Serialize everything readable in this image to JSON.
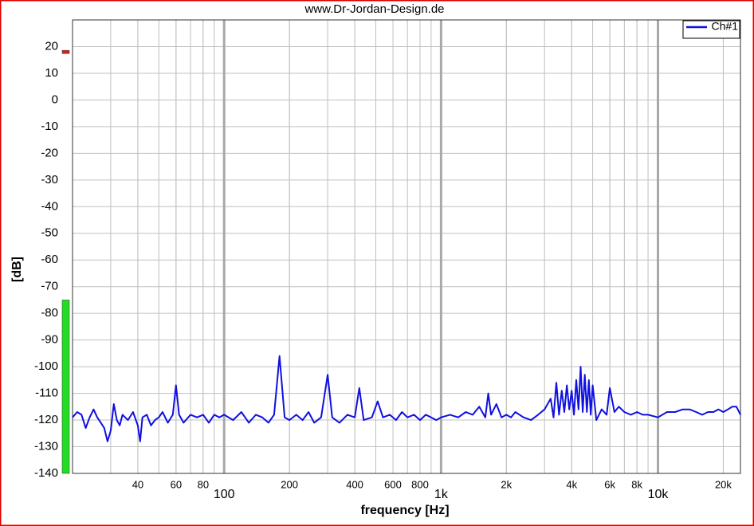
{
  "chart_data": {
    "type": "line",
    "title": "www.Dr-Jordan-Design.de",
    "x_label": "frequency [Hz]",
    "y_label": "[dB]",
    "xscale": "log",
    "xlim": [
      20,
      24000
    ],
    "ylim": [
      -140,
      30
    ],
    "grid": true,
    "minor_grid": true,
    "xticks": [
      {
        "value": 40,
        "label": "40"
      },
      {
        "value": 60,
        "label": "60"
      },
      {
        "value": 80,
        "label": "80"
      },
      {
        "value": 100,
        "label": "100"
      },
      {
        "value": 200,
        "label": "200"
      },
      {
        "value": 400,
        "label": "400"
      },
      {
        "value": 600,
        "label": "600"
      },
      {
        "value": 800,
        "label": "800"
      },
      {
        "value": 1000,
        "label": "1k"
      },
      {
        "value": 2000,
        "label": "2k"
      },
      {
        "value": 4000,
        "label": "4k"
      },
      {
        "value": 6000,
        "label": "6k"
      },
      {
        "value": 8000,
        "label": "8k"
      },
      {
        "value": 10000,
        "label": "10k"
      },
      {
        "value": 20000,
        "label": "20k"
      }
    ],
    "yticks": [
      -140,
      -130,
      -120,
      -110,
      -100,
      -90,
      -80,
      -70,
      -60,
      -50,
      -40,
      -30,
      -20,
      -10,
      0,
      10,
      20
    ],
    "legend": "top-right",
    "level_meter": {
      "level": -75,
      "level_color": "#22dd22",
      "peak": 18,
      "peak_color": "#cc2222"
    },
    "x": [
      20,
      21,
      22,
      23,
      24,
      25,
      26,
      27,
      28,
      29,
      30,
      31,
      32,
      33,
      34,
      36,
      38,
      40,
      41,
      42,
      44,
      46,
      48,
      50,
      52,
      55,
      58,
      60,
      62,
      65,
      70,
      75,
      80,
      85,
      90,
      95,
      100,
      110,
      120,
      130,
      140,
      150,
      160,
      170,
      180,
      190,
      200,
      215,
      230,
      245,
      260,
      280,
      300,
      315,
      340,
      370,
      400,
      420,
      440,
      480,
      510,
      540,
      580,
      620,
      660,
      700,
      750,
      800,
      850,
      900,
      950,
      1000,
      1100,
      1200,
      1300,
      1400,
      1500,
      1600,
      1650,
      1700,
      1800,
      1900,
      2000,
      2100,
      2200,
      2400,
      2600,
      2800,
      3000,
      3200,
      3300,
      3400,
      3500,
      3600,
      3700,
      3800,
      3900,
      4000,
      4100,
      4200,
      4300,
      4400,
      4500,
      4600,
      4700,
      4800,
      4900,
      5000,
      5200,
      5500,
      5800,
      6000,
      6300,
      6600,
      7000,
      7500,
      8000,
      8500,
      9000,
      10000,
      11000,
      12000,
      13000,
      14000,
      15000,
      16000,
      17000,
      18000,
      19000,
      20000,
      21000,
      22000,
      23000,
      24000
    ],
    "series": [
      {
        "name": "Ch#1",
        "color": "#1010e0",
        "values": [
          -119,
          -117,
          -118,
          -123,
          -119,
          -116,
          -119,
          -121,
          -123,
          -128,
          -124,
          -114,
          -120,
          -122,
          -118,
          -120,
          -117,
          -122,
          -128,
          -119,
          -118,
          -122,
          -120,
          -119,
          -117,
          -121,
          -118,
          -107,
          -118,
          -121,
          -118,
          -119,
          -118,
          -121,
          -118,
          -119,
          -118,
          -120,
          -117,
          -121,
          -118,
          -119,
          -121,
          -118,
          -96,
          -119,
          -120,
          -118,
          -120,
          -117,
          -121,
          -119,
          -103,
          -119,
          -121,
          -118,
          -119,
          -108,
          -120,
          -119,
          -113,
          -119,
          -118,
          -120,
          -117,
          -119,
          -118,
          -120,
          -118,
          -119,
          -120,
          -119,
          -118,
          -119,
          -117,
          -118,
          -115,
          -119,
          -110,
          -118,
          -114,
          -119,
          -118,
          -119,
          -117,
          -119,
          -120,
          -118,
          -116,
          -112,
          -119,
          -106,
          -118,
          -109,
          -117,
          -107,
          -116,
          -109,
          -118,
          -105,
          -116,
          -100,
          -117,
          -103,
          -117,
          -105,
          -118,
          -107,
          -120,
          -116,
          -118,
          -108,
          -117,
          -115,
          -117,
          -118,
          -117,
          -118,
          -118,
          -119,
          -117,
          -117,
          -116,
          -116,
          -117,
          -118,
          -117,
          -117,
          -116,
          -117,
          -116,
          -115,
          -115,
          -118
        ]
      }
    ]
  }
}
